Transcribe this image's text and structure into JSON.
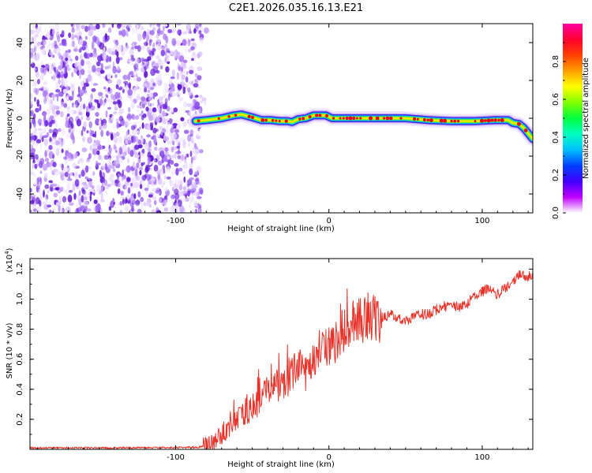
{
  "title": "C2E1.2026.035.16.13.E21",
  "colors": {
    "signal_line": "#e8332a",
    "speckle": "#7a33e6",
    "track_core": "#e60026",
    "axis": "#000000"
  },
  "chart_data": [
    {
      "type": "heatmap",
      "name": "spectrogram",
      "xlabel": "Height of straight line (km)",
      "ylabel": "Frequency (Hz)",
      "xlim": [
        -195,
        133
      ],
      "ylim": [
        -50,
        50
      ],
      "x_ticks": [
        -100,
        0,
        100
      ],
      "x_tick_labels": [
        "-100",
        "0",
        "100"
      ],
      "y_ticks": [
        -40,
        -20,
        0,
        20,
        40
      ],
      "y_tick_labels": [
        "-40",
        "-20",
        "0",
        "20",
        "40"
      ],
      "noise_region_x": [
        -195,
        -83
      ],
      "track": {
        "x": [
          -87,
          -80,
          -70,
          -62,
          -57,
          -50,
          -44,
          -38,
          -32,
          -27,
          -24,
          -20,
          -15,
          -10,
          -6,
          -2,
          2,
          6,
          10,
          20,
          35,
          50,
          65,
          80,
          95,
          108,
          117,
          120,
          124,
          127,
          130,
          133
        ],
        "y": [
          -1.5,
          -1,
          0,
          1.5,
          2,
          0.5,
          -1,
          -1,
          -1.5,
          -1.5,
          -2,
          -0.5,
          0,
          1.5,
          1.5,
          1.5,
          0,
          0,
          0,
          0,
          0,
          0,
          -1,
          -1.5,
          -1.5,
          -1,
          -1,
          -2.5,
          -3,
          -5,
          -8,
          -11
        ]
      },
      "colorbar": {
        "label": "Normalized spectral amplitude",
        "range": [
          0,
          1
        ],
        "ticks": [
          0.0,
          0.2,
          0.4,
          0.6,
          0.8
        ],
        "tick_labels": [
          "0.0",
          "0.2",
          "0.4",
          "0.6",
          "0.8"
        ],
        "colormap": [
          "#ffffff",
          "#c000ff",
          "#4000ff",
          "#0040ff",
          "#00c0ff",
          "#00ffc0",
          "#00ff40",
          "#80ff00",
          "#ffff00",
          "#ffa000",
          "#ff4000",
          "#ff0030",
          "#ff00a0"
        ]
      }
    },
    {
      "type": "line",
      "name": "snr",
      "xlabel": "Height of straight line (km)",
      "ylabel": "SNR (10 * v/v)",
      "scale_note": "(x10",
      "scale_exponent": "4",
      "scale_close": ")",
      "xlim": [
        -195,
        133
      ],
      "ylim": [
        0,
        1.27
      ],
      "x_ticks": [
        -100,
        0,
        100
      ],
      "x_tick_labels": [
        "-100",
        "0",
        "100"
      ],
      "y_ticks": [
        0.2,
        0.4,
        0.6,
        0.8,
        1.0,
        1.2
      ],
      "y_tick_labels": [
        "0.2",
        "0.4",
        "0.6",
        "0.8",
        "1.0",
        "1.2"
      ],
      "series": [
        {
          "name": "SNR",
          "x": [
            -195,
            -150,
            -100,
            -85,
            -80,
            -75,
            -70,
            -65,
            -60,
            -55,
            -50,
            -45,
            -40,
            -35,
            -30,
            -25,
            -20,
            -15,
            -10,
            -5,
            0,
            5,
            10,
            15,
            20,
            25,
            30,
            35,
            40,
            45,
            50,
            55,
            60,
            65,
            70,
            75,
            80,
            85,
            90,
            95,
            100,
            105,
            110,
            115,
            120,
            125,
            130,
            133
          ],
          "y": [
            0.01,
            0.01,
            0.012,
            0.015,
            0.02,
            0.05,
            0.1,
            0.15,
            0.2,
            0.25,
            0.28,
            0.33,
            0.38,
            0.42,
            0.45,
            0.48,
            0.55,
            0.5,
            0.6,
            0.68,
            0.7,
            0.72,
            0.8,
            0.82,
            0.85,
            0.88,
            0.86,
            0.88,
            0.9,
            0.88,
            0.85,
            0.88,
            0.9,
            0.9,
            0.93,
            0.95,
            0.96,
            0.95,
            0.97,
            1.02,
            1.05,
            1.08,
            1.03,
            1.07,
            1.12,
            1.17,
            1.15,
            1.15
          ]
        }
      ]
    }
  ]
}
